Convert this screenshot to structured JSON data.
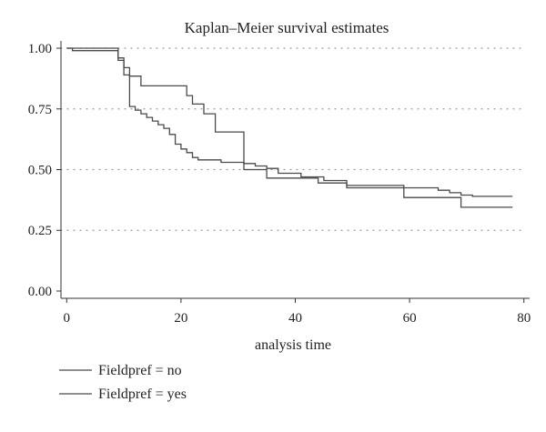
{
  "chart_data": {
    "type": "line",
    "step": true,
    "title": "Kaplan–Meier survival estimates",
    "xlabel": "analysis time",
    "ylabel": "",
    "xlim": [
      -1,
      81
    ],
    "ylim": [
      -0.03,
      1.03
    ],
    "xticks": [
      0,
      20,
      40,
      60,
      80
    ],
    "yticks": [
      0.0,
      0.25,
      0.5,
      0.75,
      1.0
    ],
    "xtick_labels": [
      "0",
      "20",
      "40",
      "60",
      "80"
    ],
    "ytick_labels": [
      "0.00",
      "0.25",
      "0.50",
      "0.75",
      "1.00"
    ],
    "grid": "horizontal dotted at y ticks",
    "legend_position": "bottom-left",
    "colors": {
      "line": "#4a4a4a",
      "axis": "#333333",
      "grid": "#999999"
    },
    "series": [
      {
        "name": "Fieldpref = no",
        "x": [
          0,
          9,
          10,
          11,
          13,
          21,
          22,
          24,
          26,
          31,
          35,
          40,
          44,
          49,
          59,
          69,
          78
        ],
        "y": [
          1.0,
          0.96,
          0.92,
          0.885,
          0.845,
          0.805,
          0.77,
          0.73,
          0.655,
          0.5,
          0.465,
          0.465,
          0.445,
          0.425,
          0.385,
          0.345,
          0.345
        ]
      },
      {
        "name": "Fieldpref = yes",
        "x": [
          0,
          1,
          9,
          10,
          11,
          12,
          13,
          14,
          15,
          16,
          17,
          18,
          19,
          20,
          21,
          22,
          23,
          27,
          31,
          33,
          35,
          37,
          41,
          45,
          49,
          59,
          65,
          67,
          69,
          71,
          78
        ],
        "y": [
          1.0,
          0.99,
          0.95,
          0.89,
          0.76,
          0.745,
          0.73,
          0.715,
          0.7,
          0.685,
          0.67,
          0.645,
          0.605,
          0.585,
          0.57,
          0.55,
          0.54,
          0.53,
          0.525,
          0.515,
          0.505,
          0.485,
          0.47,
          0.455,
          0.435,
          0.425,
          0.415,
          0.405,
          0.395,
          0.39,
          0.39
        ]
      }
    ]
  }
}
